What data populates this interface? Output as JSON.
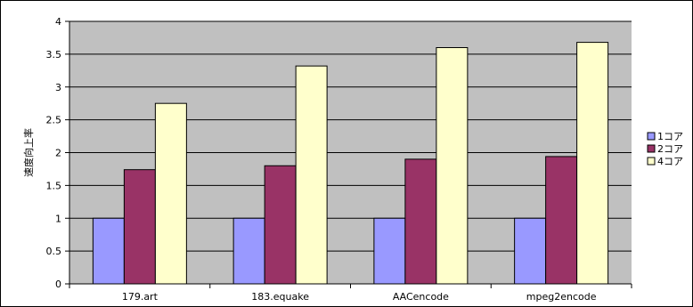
{
  "chart_data": {
    "type": "bar",
    "categories": [
      "179.art",
      "183.equake",
      "AACencode",
      "mpeg2encode"
    ],
    "series": [
      {
        "name": "1コア",
        "values": [
          1,
          1,
          1,
          1
        ],
        "color": "#9999ff"
      },
      {
        "name": "2コア",
        "values": [
          1.74,
          1.8,
          1.9,
          1.94
        ],
        "color": "#993366"
      },
      {
        "name": "4コア",
        "values": [
          2.75,
          3.32,
          3.6,
          3.68
        ],
        "color": "#ffffcc"
      }
    ],
    "title": "",
    "xlabel": "",
    "ylabel": "速度向上率",
    "ylim": [
      0,
      4
    ],
    "yticks": [
      "0",
      "0.5",
      "1",
      "1.5",
      "2",
      "2.5",
      "3",
      "3.5",
      "4"
    ],
    "grid": true,
    "legend_position": "right",
    "plot_background": "#c0c0c0"
  }
}
